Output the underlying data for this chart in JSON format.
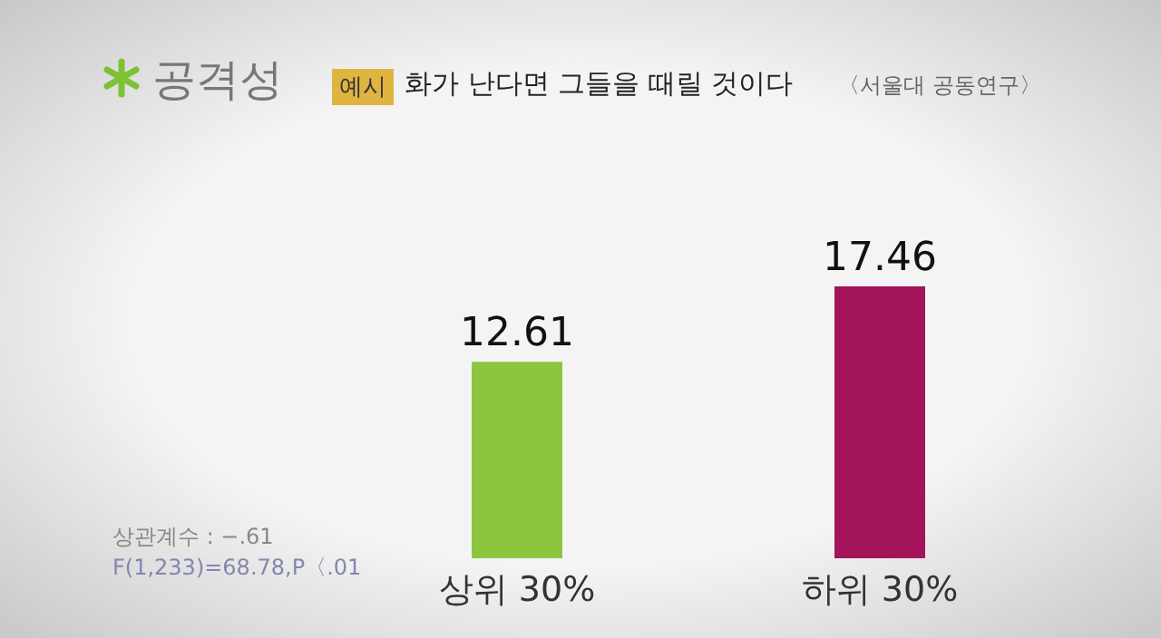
{
  "chart_data": {
    "type": "bar",
    "title": "공격성",
    "subtitle": "화가 난다면 그들을 때릴 것이다",
    "annotations": [
      "예시",
      "〈서울대 공동연구〉",
      "상관계수 : −.61",
      "F(1,233)=68.78,P〈.01"
    ],
    "categories": [
      "상위 30%",
      "하위 30%"
    ],
    "values": [
      12.61,
      17.46
    ],
    "colors": [
      "#8cc63f",
      "#a3145a"
    ],
    "data_labels": true
  }
}
